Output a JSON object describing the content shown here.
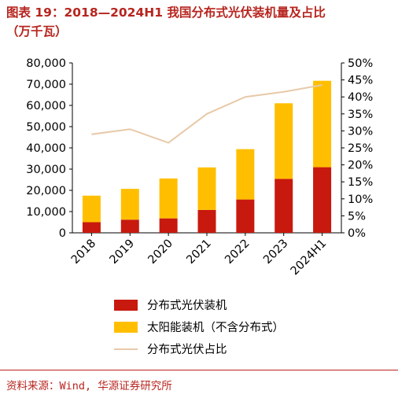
{
  "title": {
    "line1": "图表 19：2018—2024H1 我国分布式光伏装机量及占比",
    "line2": "（万千瓦）"
  },
  "source": "资料来源：Wind, 华源证券研究所",
  "colors": {
    "title": "#b7251f",
    "distributed": "#c8190e",
    "centralized": "#ffbf00",
    "share_line": "#e8c9a8",
    "axis": "#000000"
  },
  "chart_data": {
    "type": "bar",
    "stacked": true,
    "categories": [
      "2018",
      "2019",
      "2020",
      "2021",
      "2022",
      "2023",
      "2024H1"
    ],
    "series": [
      {
        "name": "分布式光伏装机",
        "type": "bar",
        "axis": "left",
        "values": [
          5000,
          6200,
          6800,
          10800,
          15700,
          25400,
          30900
        ]
      },
      {
        "name": "太阳能装机（不含分布式）",
        "type": "bar",
        "axis": "left",
        "values": [
          12500,
          14500,
          18800,
          20000,
          23700,
          35600,
          40700
        ]
      },
      {
        "name": "分布式光伏占比",
        "type": "line",
        "axis": "right",
        "values": [
          29,
          30.5,
          26.5,
          35,
          40,
          41.5,
          43.5
        ]
      }
    ],
    "ylim": [
      0,
      80000
    ],
    "yticks": [
      "0",
      "10,000",
      "20,000",
      "30,000",
      "40,000",
      "50,000",
      "60,000",
      "70,000",
      "80,000"
    ],
    "y2lim": [
      0,
      50
    ],
    "y2ticks": [
      "0%",
      "5%",
      "10%",
      "15%",
      "20%",
      "25%",
      "30%",
      "35%",
      "40%",
      "45%",
      "50%"
    ],
    "legend_position": "bottom-left",
    "grid": false
  }
}
